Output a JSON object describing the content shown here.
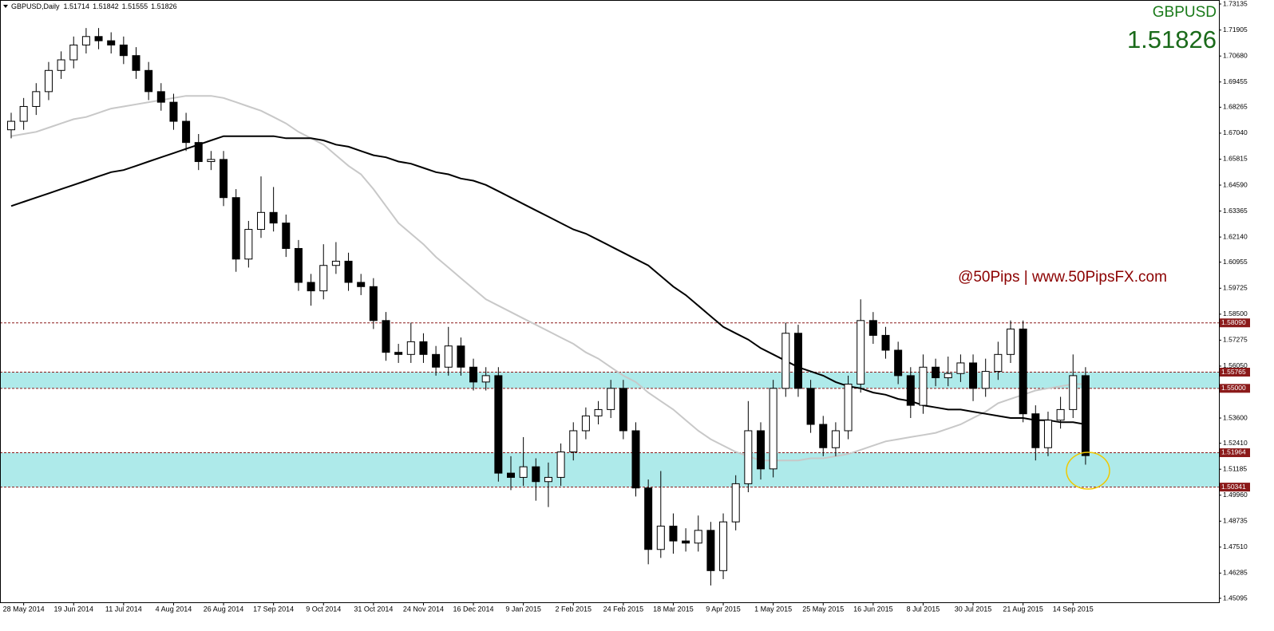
{
  "header": {
    "symbol": "GBPUSD,Daily",
    "open": 1.51714,
    "high": 1.51842,
    "low": 1.51555,
    "close": 1.51826
  },
  "symbol_label": "GBPUSD",
  "price": 1.51826,
  "watermark": "@50Pips | www.50PipsFX.com",
  "chart_data": {
    "type": "candlestick",
    "categories": [
      null,
      "28 May 2014",
      null,
      null,
      null,
      "19 Jun 2014",
      null,
      null,
      null,
      "11 Jul 2014",
      null,
      null,
      null,
      "4 Aug 2014",
      null,
      null,
      null,
      "26 Aug 2014",
      null,
      null,
      null,
      "17 Sep 2014",
      null,
      null,
      null,
      "9 Oct 2014",
      null,
      null,
      null,
      "31 Oct 2014",
      null,
      null,
      null,
      "24 Nov 2014",
      null,
      null,
      null,
      "16 Dec 2014",
      null,
      null,
      null,
      "9 Jan 2015",
      null,
      null,
      null,
      "2 Feb 2015",
      null,
      null,
      null,
      "24 Feb 2015",
      null,
      null,
      null,
      "18 Mar 2015",
      null,
      null,
      null,
      "9 Apr 2015",
      null,
      null,
      null,
      "1 May 2015",
      null,
      null,
      null,
      "25 May 2015",
      null,
      null,
      null,
      "16 Jun 2015",
      null,
      null,
      null,
      "8 Jul 2015",
      null,
      null,
      null,
      "30 Jul 2015",
      null,
      null,
      null,
      "21 Aug 2015",
      null,
      null,
      null,
      "14 Sep 2015",
      null
    ],
    "open": [
      1.672,
      1.676,
      1.683,
      1.69,
      1.7,
      1.705,
      1.712,
      1.716,
      1.714,
      1.712,
      1.707,
      1.7,
      1.69,
      1.685,
      1.676,
      1.666,
      1.657,
      1.658,
      1.64,
      1.611,
      1.625,
      1.633,
      1.628,
      1.616,
      1.6,
      1.596,
      1.608,
      1.61,
      1.6,
      1.598,
      1.582,
      1.567,
      1.566,
      1.572,
      1.566,
      1.56,
      1.57,
      1.56,
      1.553,
      1.556,
      1.51,
      1.508,
      1.513,
      1.506,
      1.508,
      1.52,
      1.53,
      1.537,
      1.54,
      1.55,
      1.53,
      1.503,
      1.474,
      1.485,
      1.478,
      1.477,
      1.483,
      1.464,
      1.487,
      1.505,
      1.53,
      1.512,
      1.55,
      1.576,
      1.55,
      1.533,
      1.522,
      1.53,
      1.552,
      1.582,
      1.575,
      1.568,
      1.556,
      1.542,
      1.56,
      1.555,
      1.557,
      1.562,
      1.55,
      1.558,
      1.566,
      1.578,
      1.538,
      1.522,
      1.535,
      1.54,
      1.556
    ],
    "high": [
      1.68,
      1.687,
      1.694,
      1.704,
      1.709,
      1.716,
      1.72,
      1.72,
      1.718,
      1.716,
      1.711,
      1.704,
      1.694,
      1.689,
      1.68,
      1.67,
      1.662,
      1.662,
      1.644,
      1.629,
      1.65,
      1.645,
      1.632,
      1.62,
      1.604,
      1.618,
      1.619,
      1.614,
      1.604,
      1.602,
      1.586,
      1.571,
      1.581,
      1.576,
      1.57,
      1.579,
      1.574,
      1.564,
      1.56,
      1.56,
      1.518,
      1.527,
      1.517,
      1.515,
      1.524,
      1.534,
      1.541,
      1.544,
      1.554,
      1.554,
      1.534,
      1.507,
      1.511,
      1.491,
      1.484,
      1.49,
      1.487,
      1.491,
      1.509,
      1.544,
      1.534,
      1.554,
      1.581,
      1.58,
      1.554,
      1.537,
      1.534,
      1.556,
      1.592,
      1.586,
      1.579,
      1.572,
      1.56,
      1.566,
      1.564,
      1.565,
      1.566,
      1.566,
      1.564,
      1.572,
      1.582,
      1.582,
      1.542,
      1.539,
      1.546,
      1.566,
      1.56
    ],
    "low": [
      1.668,
      1.672,
      1.679,
      1.686,
      1.696,
      1.701,
      1.708,
      1.71,
      1.708,
      1.703,
      1.696,
      1.686,
      1.681,
      1.672,
      1.662,
      1.653,
      1.653,
      1.636,
      1.605,
      1.607,
      1.621,
      1.624,
      1.612,
      1.596,
      1.589,
      1.592,
      1.604,
      1.596,
      1.594,
      1.578,
      1.563,
      1.562,
      1.562,
      1.562,
      1.556,
      1.556,
      1.556,
      1.549,
      1.549,
      1.506,
      1.502,
      1.504,
      1.497,
      1.494,
      1.504,
      1.516,
      1.526,
      1.533,
      1.536,
      1.526,
      1.499,
      1.467,
      1.47,
      1.472,
      1.473,
      1.473,
      1.457,
      1.46,
      1.483,
      1.501,
      1.507,
      1.508,
      1.546,
      1.546,
      1.529,
      1.518,
      1.518,
      1.526,
      1.548,
      1.571,
      1.564,
      1.552,
      1.536,
      1.538,
      1.551,
      1.551,
      1.553,
      1.544,
      1.546,
      1.554,
      1.562,
      1.534,
      1.516,
      1.518,
      1.531,
      1.536,
      1.514
    ],
    "close": [
      1.676,
      1.683,
      1.69,
      1.7,
      1.705,
      1.712,
      1.716,
      1.714,
      1.712,
      1.707,
      1.7,
      1.69,
      1.685,
      1.676,
      1.666,
      1.657,
      1.658,
      1.64,
      1.611,
      1.625,
      1.633,
      1.628,
      1.616,
      1.6,
      1.596,
      1.608,
      1.61,
      1.6,
      1.598,
      1.582,
      1.567,
      1.566,
      1.572,
      1.566,
      1.56,
      1.57,
      1.56,
      1.553,
      1.556,
      1.51,
      1.508,
      1.513,
      1.506,
      1.508,
      1.52,
      1.53,
      1.537,
      1.54,
      1.55,
      1.53,
      1.503,
      1.474,
      1.485,
      1.478,
      1.477,
      1.483,
      1.464,
      1.487,
      1.505,
      1.53,
      1.512,
      1.55,
      1.576,
      1.55,
      1.533,
      1.522,
      1.53,
      1.552,
      1.582,
      1.575,
      1.568,
      1.556,
      1.542,
      1.56,
      1.555,
      1.557,
      1.562,
      1.55,
      1.558,
      1.566,
      1.578,
      1.538,
      1.522,
      1.535,
      1.54,
      1.556,
      1.51826
    ],
    "up_color": "#ffffff",
    "down_color": "#000000",
    "wick_color": "#000000",
    "moving_averages": [
      {
        "color": "#c8c8c8",
        "values": [
          1.669,
          1.67,
          1.671,
          1.673,
          1.675,
          1.677,
          1.678,
          1.68,
          1.682,
          1.683,
          1.684,
          1.685,
          1.686,
          1.687,
          1.688,
          1.688,
          1.688,
          1.687,
          1.685,
          1.683,
          1.681,
          1.678,
          1.675,
          1.671,
          1.668,
          1.665,
          1.66,
          1.655,
          1.651,
          1.644,
          1.636,
          1.628,
          1.623,
          1.618,
          1.612,
          1.607,
          1.602,
          1.597,
          1.592,
          1.589,
          1.586,
          1.583,
          1.58,
          1.577,
          1.574,
          1.571,
          1.567,
          1.564,
          1.56,
          1.556,
          1.553,
          1.548,
          1.544,
          1.54,
          1.535,
          1.53,
          1.526,
          1.523,
          1.52,
          1.518,
          1.516,
          1.516,
          1.516,
          1.516,
          1.517,
          1.517,
          1.518,
          1.519,
          1.521,
          1.523,
          1.525,
          1.526,
          1.527,
          1.528,
          1.529,
          1.531,
          1.533,
          1.536,
          1.539,
          1.543,
          1.545,
          1.547,
          1.549,
          1.55,
          1.551,
          1.552,
          1.552
        ]
      },
      {
        "color": "#000000",
        "values": [
          1.636,
          1.638,
          1.64,
          1.642,
          1.644,
          1.646,
          1.648,
          1.65,
          1.652,
          1.653,
          1.655,
          1.657,
          1.659,
          1.661,
          1.663,
          1.665,
          1.667,
          1.669,
          1.669,
          1.669,
          1.669,
          1.669,
          1.668,
          1.668,
          1.668,
          1.667,
          1.665,
          1.664,
          1.662,
          1.66,
          1.659,
          1.657,
          1.656,
          1.654,
          1.652,
          1.651,
          1.649,
          1.648,
          1.646,
          1.643,
          1.64,
          1.637,
          1.634,
          1.631,
          1.628,
          1.625,
          1.623,
          1.62,
          1.617,
          1.614,
          1.611,
          1.608,
          1.603,
          1.598,
          1.594,
          1.589,
          1.584,
          1.579,
          1.576,
          1.573,
          1.569,
          1.566,
          1.563,
          1.56,
          1.558,
          1.556,
          1.553,
          1.551,
          1.55,
          1.548,
          1.547,
          1.545,
          1.544,
          1.542,
          1.541,
          1.54,
          1.54,
          1.539,
          1.538,
          1.537,
          1.536,
          1.536,
          1.535,
          1.535,
          1.534,
          1.534,
          1.533
        ]
      }
    ],
    "levels": [
      {
        "value": 1.5809,
        "label": "1.58090"
      },
      1.55765,
      {
        "value": 1.55,
        "label": "1.55000"
      },
      1.51964,
      1.50341
    ],
    "level_color": "#8b1a1a",
    "zones": [
      [
        1.55,
        1.55765
      ],
      [
        1.50341,
        1.51964
      ]
    ],
    "zone_color": "#aeeaea",
    "ylim": [
      1.45095,
      1.73135
    ],
    "yticks": [
      1.73135,
      1.71905,
      {
        "value": 1.7068,
        "label": "1.70680"
      },
      1.69455,
      1.68265,
      {
        "value": 1.6704,
        "label": "1.67040"
      },
      1.65815,
      {
        "value": 1.6459,
        "label": "1.64590"
      },
      1.63365,
      {
        "value": 1.6214,
        "label": "1.62140"
      },
      1.60955,
      1.59725,
      {
        "value": 1.585,
        "label": "1.58500"
      },
      1.57275,
      {
        "value": 1.5605,
        "label": "1.56050"
      },
      {
        "value": 1.536,
        "label": "1.53600"
      },
      {
        "value": 1.5241,
        "label": "1.52410"
      },
      1.51185,
      {
        "value": 1.4996,
        "label": "1.49960"
      },
      1.48735,
      {
        "value": 1.4751,
        "label": "1.47510"
      },
      1.46285,
      1.45095
    ],
    "grid": false
  }
}
